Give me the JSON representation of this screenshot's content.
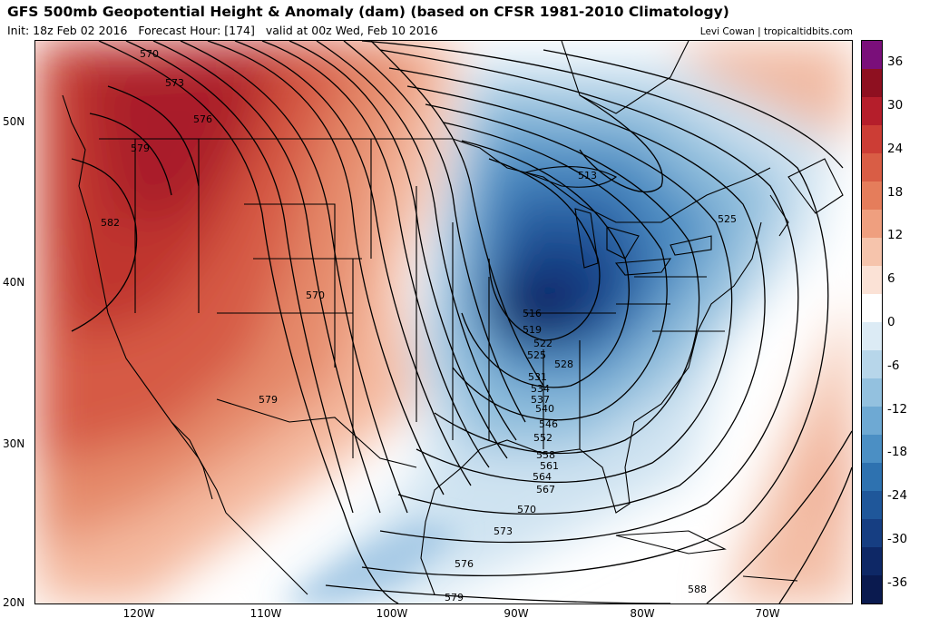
{
  "header": {
    "title": "GFS 500mb Geopotential Height & Anomaly (dam) (based on CFSR 1981-2010 Climatology)",
    "init": "Init: 18z Feb 02 2016",
    "forecast_hour": "Forecast Hour: [174]",
    "valid": "valid at 00z Wed, Feb 10 2016",
    "credit": "Levi Cowan | tropicaltidbits.com"
  },
  "axes": {
    "latitudes": [
      "50N",
      "40N",
      "30N",
      "20N"
    ],
    "longitudes": [
      "120W",
      "110W",
      "100W",
      "90W",
      "80W",
      "70W"
    ]
  },
  "colorbar": {
    "labels": [
      "36",
      "30",
      "24",
      "18",
      "12",
      "6",
      "0",
      "-6",
      "-12",
      "-18",
      "-24",
      "-30",
      "-36"
    ],
    "colors": [
      "#7a0f7a",
      "#8e1020",
      "#b51e2b",
      "#cc3d35",
      "#d95d45",
      "#e57d5b",
      "#ef9f7f",
      "#f6c4ac",
      "#fbe2d6",
      "#ffffff",
      "#dcebf5",
      "#b7d6ea",
      "#93c1df",
      "#6ea9d3",
      "#4b8fc4",
      "#2e72b0",
      "#1f579a",
      "#163e82",
      "#0e2866",
      "#0a1a4f"
    ]
  },
  "contour_labels": [
    "570",
    "573",
    "576",
    "579",
    "582",
    "570",
    "579",
    "513",
    "525",
    "516",
    "519",
    "522",
    "525",
    "528",
    "531",
    "534",
    "537",
    "540",
    "546",
    "552",
    "558",
    "561",
    "564",
    "567",
    "570",
    "573",
    "576",
    "579",
    "588"
  ]
}
